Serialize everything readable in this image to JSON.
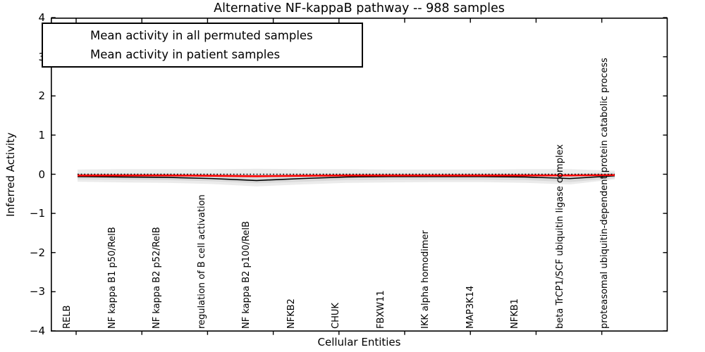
{
  "chart_data": {
    "type": "line",
    "title": "Alternative NF-kappaB pathway -- 988 samples",
    "xlabel": "Cellular Entities",
    "ylabel": "Inferred Activity",
    "ylim": [
      -4,
      4
    ],
    "yticklabels": [
      "4",
      "3",
      "2",
      "1",
      "0",
      "−1",
      "−2",
      "−3",
      "−4"
    ],
    "ytick_values": [
      4,
      3,
      2,
      1,
      0,
      -1,
      -2,
      -3,
      -4
    ],
    "grid": false,
    "legend_position": "upper left",
    "categories": [
      "RELB",
      "NF kappa B1 p50/RelB",
      "NF kappa B2 p52/RelB",
      "regulation of B cell activation",
      "NF kappa B2 p100/RelB",
      "NFKB2",
      "CHUK",
      "FBXW11",
      "IKK alpha homodimer",
      "MAP3K14",
      "NFKB1",
      "beta TrCP1/SCF ubiquitin ligase complex",
      "proteasomal ubiquitin-dependent protein catabolic process"
    ],
    "series": [
      {
        "name": "Mean activity in all permuted samples",
        "color": "#000000",
        "style": "solid",
        "width": 1.6,
        "values": [
          -0.06,
          -0.07,
          -0.08,
          -0.11,
          -0.16,
          -0.11,
          -0.07,
          -0.06,
          -0.06,
          -0.06,
          -0.07,
          -0.11,
          -0.04
        ]
      },
      {
        "name": "Mean activity in patient samples",
        "color": "#ff0000",
        "style": "solid",
        "width": 2.6,
        "values": [
          -0.03,
          -0.03,
          -0.03,
          -0.04,
          -0.05,
          -0.04,
          -0.03,
          -0.03,
          -0.03,
          -0.03,
          -0.03,
          -0.03,
          -0.02
        ]
      },
      {
        "name": "zero-reference",
        "color": "#000000",
        "style": "dotted",
        "width": 1.5,
        "values": [
          0,
          0,
          0,
          0,
          0,
          0,
          0,
          0,
          0,
          0,
          0,
          0,
          0
        ]
      }
    ],
    "bands": [
      {
        "name": "permuted-activity-range-outer",
        "color": "#ebebeb",
        "top": [
          0.12,
          0.13,
          0.13,
          0.13,
          0.14,
          0.13,
          0.13,
          0.12,
          0.12,
          0.12,
          0.13,
          0.13,
          0.09
        ],
        "bottom": [
          -0.19,
          -0.21,
          -0.22,
          -0.25,
          -0.31,
          -0.26,
          -0.22,
          -0.21,
          -0.2,
          -0.2,
          -0.22,
          -0.26,
          -0.13
        ]
      },
      {
        "name": "permuted-activity-range-inner",
        "color": "#d9d9d9",
        "top": [
          0.03,
          0.03,
          0.03,
          0.02,
          0.01,
          0.02,
          0.03,
          0.03,
          0.03,
          0.03,
          0.03,
          0.02,
          0.04
        ],
        "bottom": [
          -0.13,
          -0.14,
          -0.15,
          -0.18,
          -0.23,
          -0.19,
          -0.15,
          -0.14,
          -0.14,
          -0.14,
          -0.15,
          -0.2,
          -0.1
        ]
      }
    ],
    "legend_entries": [
      {
        "label": "Mean activity in all permuted samples",
        "color": "#000000"
      },
      {
        "label": "Mean activity in patient samples",
        "color": "#ff0000"
      }
    ]
  }
}
